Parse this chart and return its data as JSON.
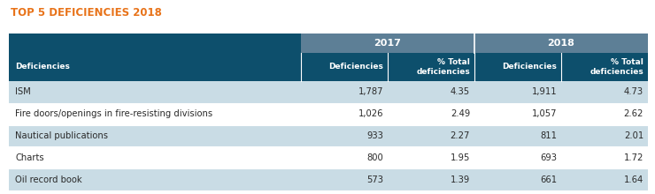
{
  "title": "TOP 5 DEFICIENCIES 2018",
  "title_color": "#E8731A",
  "header_year_bg": "#5D7F96",
  "header_col_bg": "#0D4F6C",
  "row_bg_odd": "#C9DCE5",
  "row_bg_even": "#FFFFFF",
  "col_header_text_color": "#FFFFFF",
  "year_header_text_color": "#FFFFFF",
  "row_text_color": "#2A2A2A",
  "rows": [
    [
      "ISM",
      "1,787",
      "4.35",
      "1,911",
      "4.73"
    ],
    [
      "Fire doors/openings in fire-resisting divisions",
      "1,026",
      "2.49",
      "1,057",
      "2.62"
    ],
    [
      "Nautical publications",
      "933",
      "2.27",
      "811",
      "2.01"
    ],
    [
      "Charts",
      "800",
      "1.95",
      "693",
      "1.72"
    ],
    [
      "Oil record book",
      "573",
      "1.39",
      "661",
      "1.64"
    ]
  ],
  "figsize": [
    7.4,
    2.2
  ],
  "dpi": 100
}
